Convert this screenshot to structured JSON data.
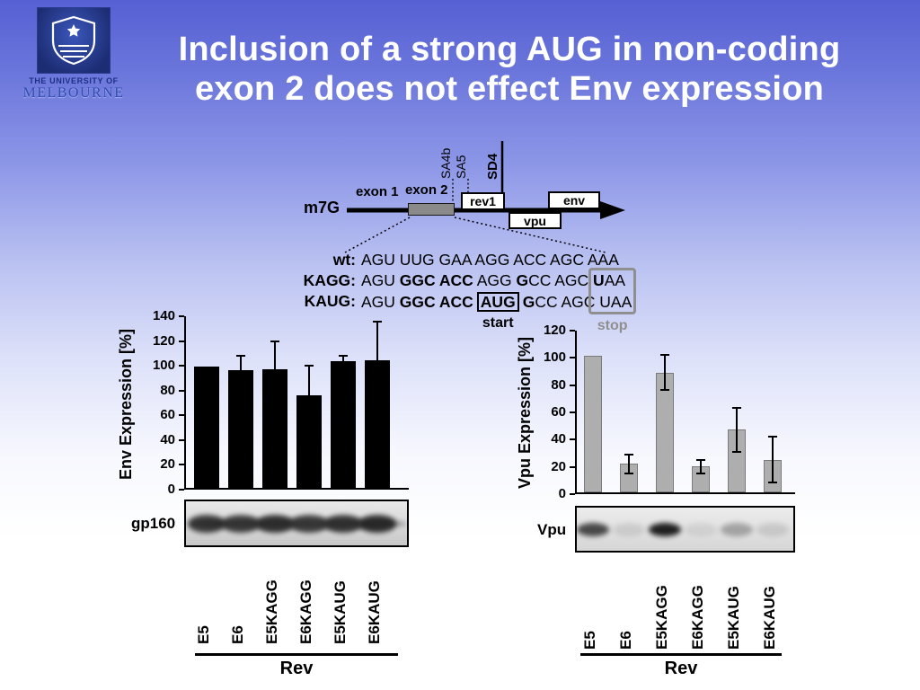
{
  "slide": {
    "title_line1": "Inclusion of a strong AUG in non-coding",
    "title_line2": "exon 2 does not effect Env expression"
  },
  "logo": {
    "institution_top": "THE UNIVERSITY OF",
    "institution_name": "MELBOURNE"
  },
  "diagram": {
    "cap_label": "m7G",
    "exon1_label": "exon 1",
    "exon2_label": "exon 2",
    "rev1_label": "rev1",
    "vpu_label": "vpu",
    "env_label": "env",
    "sa4b_label": "SA4b",
    "sa5_label": "SA5",
    "sd4_label": "SD4"
  },
  "seq": {
    "wt_label": "wt:",
    "wt_text": "AGU UUG GAA AGG ACC AGC AAA",
    "kagg_label": "KAGG:",
    "kagg_t1": "AGU ",
    "kagg_b1": "GGC ACC",
    "kagg_t2": " AGG ",
    "kagg_b2": "G",
    "kagg_t3": "CC AGC ",
    "kagg_b3": "U",
    "kagg_t4": "AA",
    "kaug_label": "KAUG:",
    "kaug_t1": "AGU ",
    "kaug_b1": "GGC ACC",
    "kaug_start": "AUG",
    "kaug_b2": "G",
    "kaug_t2": "CC AGC ",
    "kaug_stop": "UAA",
    "start_label": "start",
    "stop_label": "stop"
  },
  "blots": {
    "env": {
      "label": "gp160",
      "band_opacities": [
        0.8,
        0.75,
        0.8,
        0.72,
        0.78,
        0.85
      ]
    },
    "vpu": {
      "label": "Vpu",
      "band_opacities": [
        0.75,
        0.1,
        0.95,
        0.08,
        0.3,
        0.12
      ]
    }
  },
  "chart_data": [
    {
      "type": "bar",
      "ylabel": "Env Expression [%]",
      "categories": [
        "E5",
        "E6",
        "E5KAGG",
        "E6KAGG",
        "E5KAUG",
        "E6KAUG"
      ],
      "values": [
        98,
        95,
        96,
        75,
        102,
        103
      ],
      "errors": [
        0,
        12,
        22,
        24,
        5,
        31
      ],
      "ylim": [
        0,
        140
      ],
      "yticks": [
        0,
        20,
        40,
        60,
        80,
        100,
        120,
        140
      ],
      "bar_color": "#000000",
      "bar_border": null,
      "group_label": "Rev",
      "legend": false,
      "grid": false
    },
    {
      "type": "bar",
      "ylabel": "Vpu Expression [%]",
      "categories": [
        "E5",
        "E6",
        "E5KAGG",
        "E6KAGG",
        "E5KAUG",
        "E6KAUG"
      ],
      "values": [
        100,
        21,
        88,
        19,
        46,
        24
      ],
      "errors": [
        0,
        7,
        13,
        5,
        16,
        17
      ],
      "ylim": [
        0,
        120
      ],
      "yticks": [
        0,
        20,
        40,
        60,
        80,
        100,
        120
      ],
      "bar_color": "#aeaeae",
      "bar_border": "#7a7a7a",
      "group_label": "Rev",
      "legend": false,
      "grid": false
    }
  ]
}
